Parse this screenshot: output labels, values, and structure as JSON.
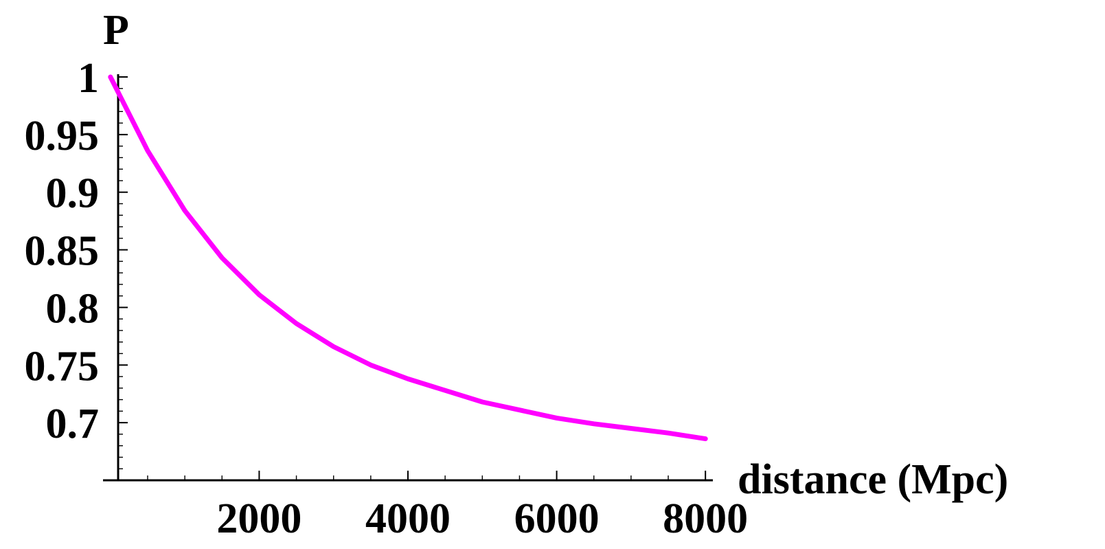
{
  "chart_data": {
    "type": "line",
    "title": "",
    "xlabel": "distance (Mpc)",
    "ylabel": "P",
    "xlim": [
      -100,
      8100
    ],
    "ylim": [
      0.65,
      1.0
    ],
    "x_ticks": [
      2000,
      4000,
      6000,
      8000
    ],
    "x_tick_labels": [
      "2000",
      "4000",
      "6000",
      "8000"
    ],
    "y_ticks": [
      0.7,
      0.75,
      0.8,
      0.85,
      0.9,
      0.95,
      1.0
    ],
    "y_tick_labels": [
      "0.7",
      "0.75",
      "0.8",
      "0.85",
      "0.9",
      "0.95",
      "1"
    ],
    "grid": false,
    "line_color": "#ff00ff",
    "series": [
      {
        "x": [
          0,
          500,
          1000,
          1500,
          2000,
          2500,
          3000,
          3500,
          4000,
          4500,
          5000,
          5500,
          6000,
          6500,
          7000,
          7500,
          8000
        ],
        "y": [
          1.0,
          0.936,
          0.884,
          0.843,
          0.811,
          0.786,
          0.766,
          0.75,
          0.738,
          0.728,
          0.718,
          0.711,
          0.704,
          0.699,
          0.695,
          0.691,
          0.686
        ]
      }
    ]
  }
}
